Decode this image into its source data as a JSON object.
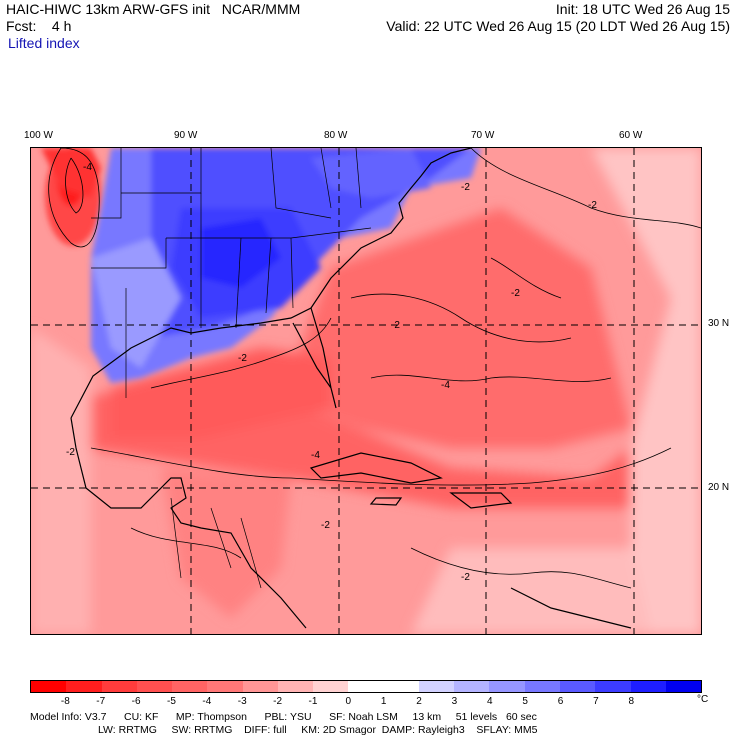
{
  "header": {
    "model": "HAIC-HIWC 13km ARW-GFS init",
    "center": "NCAR/MMM",
    "init": "Init: 18 UTC Wed 26 Aug 15",
    "fcst_label": "Fcst:",
    "fcst_value": "4 h",
    "valid": "Valid: 22 UTC Wed 26 Aug 15 (20 LDT Wed 26 Aug 15)",
    "variable": "Lifted index"
  },
  "map": {
    "lon_labels": [
      "100 W",
      "90 W",
      "80 W",
      "70 W",
      "60 W"
    ],
    "lat_labels": [
      "30 N",
      "20 N"
    ],
    "contour_labels": [
      "-4",
      "-2",
      "-2",
      "-2",
      "-2",
      "-2",
      "-2",
      "-2",
      "-4",
      "-4",
      "-2"
    ]
  },
  "colorbar": {
    "ticks": [
      "-8",
      "-7",
      "-6",
      "-5",
      "-4",
      "-3",
      "-2",
      "-1",
      "0",
      "1",
      "2",
      "3",
      "4",
      "5",
      "6",
      "7",
      "8"
    ],
    "unit": "°C",
    "colors": [
      "#ff0000",
      "#ff1e1e",
      "#ff3c3c",
      "#ff5050",
      "#ff6464",
      "#ff7878",
      "#ff9696",
      "#ffb4b4",
      "#ffd2d2",
      "#ffffff",
      "#ffffff",
      "#d2d2ff",
      "#b4b4ff",
      "#9696ff",
      "#7878ff",
      "#5a5aff",
      "#3c3cff",
      "#1e1eff",
      "#0000f0"
    ]
  },
  "model_info": {
    "line1": [
      "Model Info: V3.7",
      "CU: KF",
      "MP: Thompson",
      "PBL: YSU",
      "SF: Noah LSM",
      "13 km",
      "51 levels",
      "60 sec"
    ],
    "line2": [
      "LW: RRTMG",
      "SW: RRTMG",
      "DIFF: full",
      "KM: 2D Smagor",
      "DAMP: Rayleigh3",
      "SFLAY: MM5"
    ]
  }
}
